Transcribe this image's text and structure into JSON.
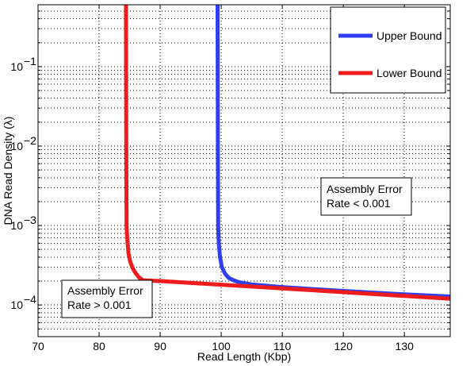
{
  "chart_data": {
    "type": "line",
    "title": "",
    "xlabel": "Read Length (Kbp)",
    "ylabel": "DNA Read Density (λ)",
    "xlim": [
      70,
      137.5
    ],
    "ylim": [
      4e-05,
      0.6
    ],
    "yscale": "log",
    "x_ticks": [
      70,
      80,
      90,
      100,
      110,
      120,
      130
    ],
    "y_tick_labels": [
      {
        "mantissa": "10",
        "exponent": "−4",
        "value": 0.0001
      },
      {
        "mantissa": "10",
        "exponent": "−3",
        "value": 0.001
      },
      {
        "mantissa": "10",
        "exponent": "−2",
        "value": 0.01
      },
      {
        "mantissa": "10",
        "exponent": "−1",
        "value": 0.1
      }
    ],
    "grid": true,
    "legend_position": "top-right",
    "series": [
      {
        "name": "Upper Bound",
        "color": "#2f3ef0",
        "x": [
          99.4,
          99.45,
          99.5,
          99.6,
          99.8,
          100.1,
          100.6,
          101.2,
          102.0,
          103.0,
          105.0,
          110.0,
          120.0,
          130.0,
          137.5
        ],
        "y": [
          0.6,
          0.01,
          0.001,
          0.0006,
          0.0004,
          0.0003,
          0.00025,
          0.00022,
          0.000205,
          0.000193,
          0.000181,
          0.000168,
          0.00015,
          0.000136,
          0.000128
        ]
      },
      {
        "name": "Lower Bound",
        "color": "#ee1c1c",
        "x": [
          84.4,
          84.45,
          84.5,
          84.6,
          84.8,
          85.1,
          85.5,
          86.0,
          86.6,
          87.2,
          90.0,
          100.0,
          110.0,
          120.0,
          130.0,
          137.5
        ],
        "y": [
          0.6,
          0.01,
          0.001,
          0.0007,
          0.00045,
          0.00035,
          0.00029,
          0.00025,
          0.00022,
          0.000205,
          0.0002,
          0.00018,
          0.000162,
          0.000145,
          0.00013,
          0.00012
        ]
      }
    ],
    "annotations": [
      {
        "id": "upper-region",
        "lines": [
          "Assembly Error",
          "Rate < 0.001"
        ]
      },
      {
        "id": "lower-region",
        "lines": [
          "Assembly Error",
          "Rate > 0.001"
        ]
      }
    ]
  }
}
